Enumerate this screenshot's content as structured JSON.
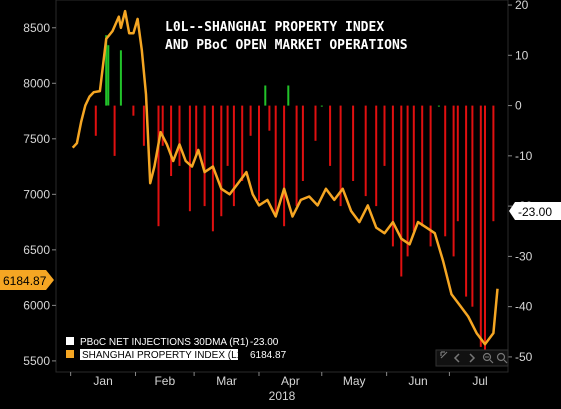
{
  "chart_data": {
    "type": "line+bar",
    "title_lines": [
      "L0L--SHANGHAI PROPERTY INDEX",
      "AND PBoC OPEN MARKET OPERATIONS"
    ],
    "x_months": [
      "Jan",
      "Feb",
      "Mar",
      "Apr",
      "May",
      "Jun",
      "Jul"
    ],
    "x_year": "2018",
    "left_axis": {
      "ylim": [
        5400,
        8750
      ],
      "ticks": [
        "5500",
        "6000",
        "6500",
        "7000",
        "7500",
        "8000",
        "8500"
      ]
    },
    "right_axis": {
      "ylim": [
        -53,
        21
      ],
      "ticks": [
        "-50",
        "-40",
        "-30",
        "-20",
        "-10",
        "0",
        "10",
        "20"
      ]
    },
    "last_value_flags": {
      "left": "6184.87",
      "right": "-23.00"
    },
    "colors": {
      "line": "#f5a623",
      "bar_positive": "#22c32a",
      "bar_negative": "#e01010",
      "background": "#000000",
      "axis_text": "#d6d6d6",
      "flag_left_bg": "#f5a623",
      "flag_right_bg": "#ffffff"
    },
    "legend": [
      {
        "label": "PBoC NET INJECTIONS 30DMA (R1)",
        "value": "-23.00",
        "swatch": "#ffffff"
      },
      {
        "label": "SHANGHAI PROPERTY INDEX (L1)",
        "value": "6184.87",
        "swatch": "#f5a623"
      }
    ],
    "series": [
      {
        "name": "SHANGHAI PROPERTY INDEX (L1)",
        "axis": "left",
        "x": [
          "2018-01-02",
          "2018-01-04",
          "2018-01-06",
          "2018-01-08",
          "2018-01-10",
          "2018-01-12",
          "2018-01-15",
          "2018-01-18",
          "2018-01-21",
          "2018-01-24",
          "2018-01-25",
          "2018-01-27",
          "2018-01-29",
          "2018-01-31",
          "2018-02-02",
          "2018-02-04",
          "2018-02-06",
          "2018-02-08",
          "2018-02-10",
          "2018-02-13",
          "2018-02-16",
          "2018-02-19",
          "2018-02-22",
          "2018-02-25",
          "2018-02-28",
          "2018-03-03",
          "2018-03-06",
          "2018-03-10",
          "2018-03-14",
          "2018-03-18",
          "2018-03-22",
          "2018-03-26",
          "2018-03-29",
          "2018-04-01",
          "2018-04-05",
          "2018-04-09",
          "2018-04-13",
          "2018-04-17",
          "2018-04-21",
          "2018-04-25",
          "2018-04-29",
          "2018-05-03",
          "2018-05-07",
          "2018-05-11",
          "2018-05-15",
          "2018-05-19",
          "2018-05-23",
          "2018-05-27",
          "2018-05-31",
          "2018-06-04",
          "2018-06-08",
          "2018-06-12",
          "2018-06-16",
          "2018-06-20",
          "2018-06-24",
          "2018-06-28",
          "2018-07-02",
          "2018-07-06",
          "2018-07-10",
          "2018-07-14",
          "2018-07-18",
          "2018-07-22",
          "2018-07-24"
        ],
        "values": [
          7420,
          7460,
          7650,
          7800,
          7880,
          7920,
          7930,
          8400,
          8470,
          8600,
          8500,
          8650,
          8450,
          8450,
          8580,
          8300,
          7900,
          7100,
          7250,
          7560,
          7450,
          7300,
          7450,
          7300,
          7250,
          7400,
          7200,
          7250,
          7050,
          7000,
          7100,
          7200,
          7000,
          6900,
          6950,
          6800,
          7050,
          6800,
          6950,
          6980,
          6900,
          7050,
          6950,
          7050,
          6850,
          6750,
          6900,
          6700,
          6650,
          6750,
          6600,
          6550,
          6750,
          6700,
          6650,
          6400,
          6100,
          6000,
          5900,
          5750,
          5650,
          5750,
          6150
        ]
      },
      {
        "name": "PBoC NET INJECTIONS 30DMA (R1)",
        "axis": "right",
        "type": "bar",
        "x": [
          "2018-01-13",
          "2018-01-18",
          "2018-01-19",
          "2018-01-22",
          "2018-01-25",
          "2018-01-31",
          "2018-02-05",
          "2018-02-12",
          "2018-02-14",
          "2018-02-18",
          "2018-02-22",
          "2018-02-27",
          "2018-03-02",
          "2018-03-06",
          "2018-03-10",
          "2018-03-14",
          "2018-03-17",
          "2018-03-20",
          "2018-03-24",
          "2018-03-28",
          "2018-04-01",
          "2018-04-04",
          "2018-04-06",
          "2018-04-09",
          "2018-04-13",
          "2018-04-15",
          "2018-04-19",
          "2018-04-22",
          "2018-04-28",
          "2018-05-01",
          "2018-05-05",
          "2018-05-10",
          "2018-05-16",
          "2018-05-22",
          "2018-05-27",
          "2018-05-31",
          "2018-06-04",
          "2018-06-08",
          "2018-06-11",
          "2018-06-14",
          "2018-06-18",
          "2018-06-22",
          "2018-06-26",
          "2018-06-29",
          "2018-07-03",
          "2018-07-05",
          "2018-07-09",
          "2018-07-12",
          "2018-07-16",
          "2018-07-18",
          "2018-07-22"
        ],
        "values": [
          -6,
          14,
          12,
          -10,
          11,
          -2,
          -8,
          -24,
          -8,
          -14,
          -12,
          -21,
          -10,
          -20,
          -25,
          -22,
          -12,
          -20,
          -15,
          -6,
          -19,
          4,
          -5,
          -22,
          -24,
          4,
          -20,
          -15,
          -7,
          0,
          -12,
          -20,
          -15,
          -18,
          -20,
          -12,
          -28,
          -34,
          -30,
          -25,
          -24,
          -28,
          0,
          -26,
          -30,
          -23,
          -38,
          -40,
          -48,
          -49,
          -23
        ]
      }
    ]
  }
}
